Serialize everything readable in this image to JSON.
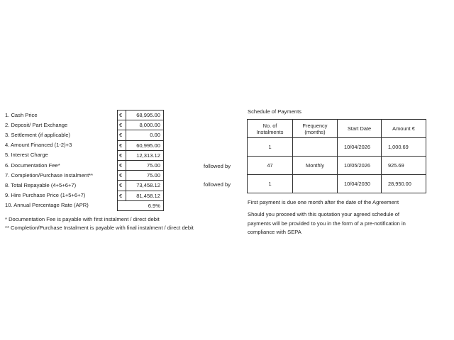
{
  "left": {
    "rows": [
      {
        "label": "1.  Cash Price",
        "currency": "€",
        "value": "68,995.00"
      },
      {
        "label": "2.  Deposit/ Part Exchange",
        "currency": "€",
        "value": "8,000.00"
      },
      {
        "label": "3.  Settlement (if applicable)",
        "currency": "€",
        "value": "0.00"
      },
      {
        "label": "4.  Amount Financed (1-2)+3",
        "currency": "€",
        "value": "60,995.00"
      },
      {
        "label": "5.  Interest Charge",
        "currency": "€",
        "value": "12,313.12"
      },
      {
        "label": "6.  Documentation Fee*",
        "currency": "€",
        "value": "75.00"
      },
      {
        "label": "7. Completion/Purchase Instalment**",
        "currency": "€",
        "value": "75.00"
      },
      {
        "label": "8. Total Repayable (4+5+6+7)",
        "currency": "€",
        "value": "73,458.12"
      },
      {
        "label": "9. Hire Purchase Price (1+5+6+7)",
        "currency": "€",
        "value": "81,458.12"
      },
      {
        "label": "10. Annual Percentage Rate (APR)",
        "currency": "",
        "value": "6.9%"
      }
    ],
    "footnotes": [
      "* Documentation Fee is payable with first instalment / direct debit",
      "** Completion/Purchase Instalment is payable with final instalment / direct debit"
    ]
  },
  "followed_by": [
    "followed by",
    "followed by"
  ],
  "schedule": {
    "title": "Schedule of Payments",
    "headers": [
      [
        "No. of",
        "Instalments"
      ],
      [
        "Frequency",
        "(months)"
      ],
      "Start Date",
      "Amount €"
    ],
    "rows": [
      {
        "count": "1",
        "frequency": "",
        "start": "10/04/2026",
        "amount": "1,000.69"
      },
      {
        "count": "47",
        "frequency": "Monthly",
        "start": "10/05/2026",
        "amount": "925.69"
      },
      {
        "count": "1",
        "frequency": "",
        "start": "10/04/2030",
        "amount": "28,950.00"
      }
    ],
    "note1": "First payment is due one month after the date of the Agreement",
    "note2": [
      "Should you proceed with this quotation your agreed schedule of",
      "payments will be provided to you in the form of a pre-notification in",
      "compliance with SEPA"
    ]
  }
}
